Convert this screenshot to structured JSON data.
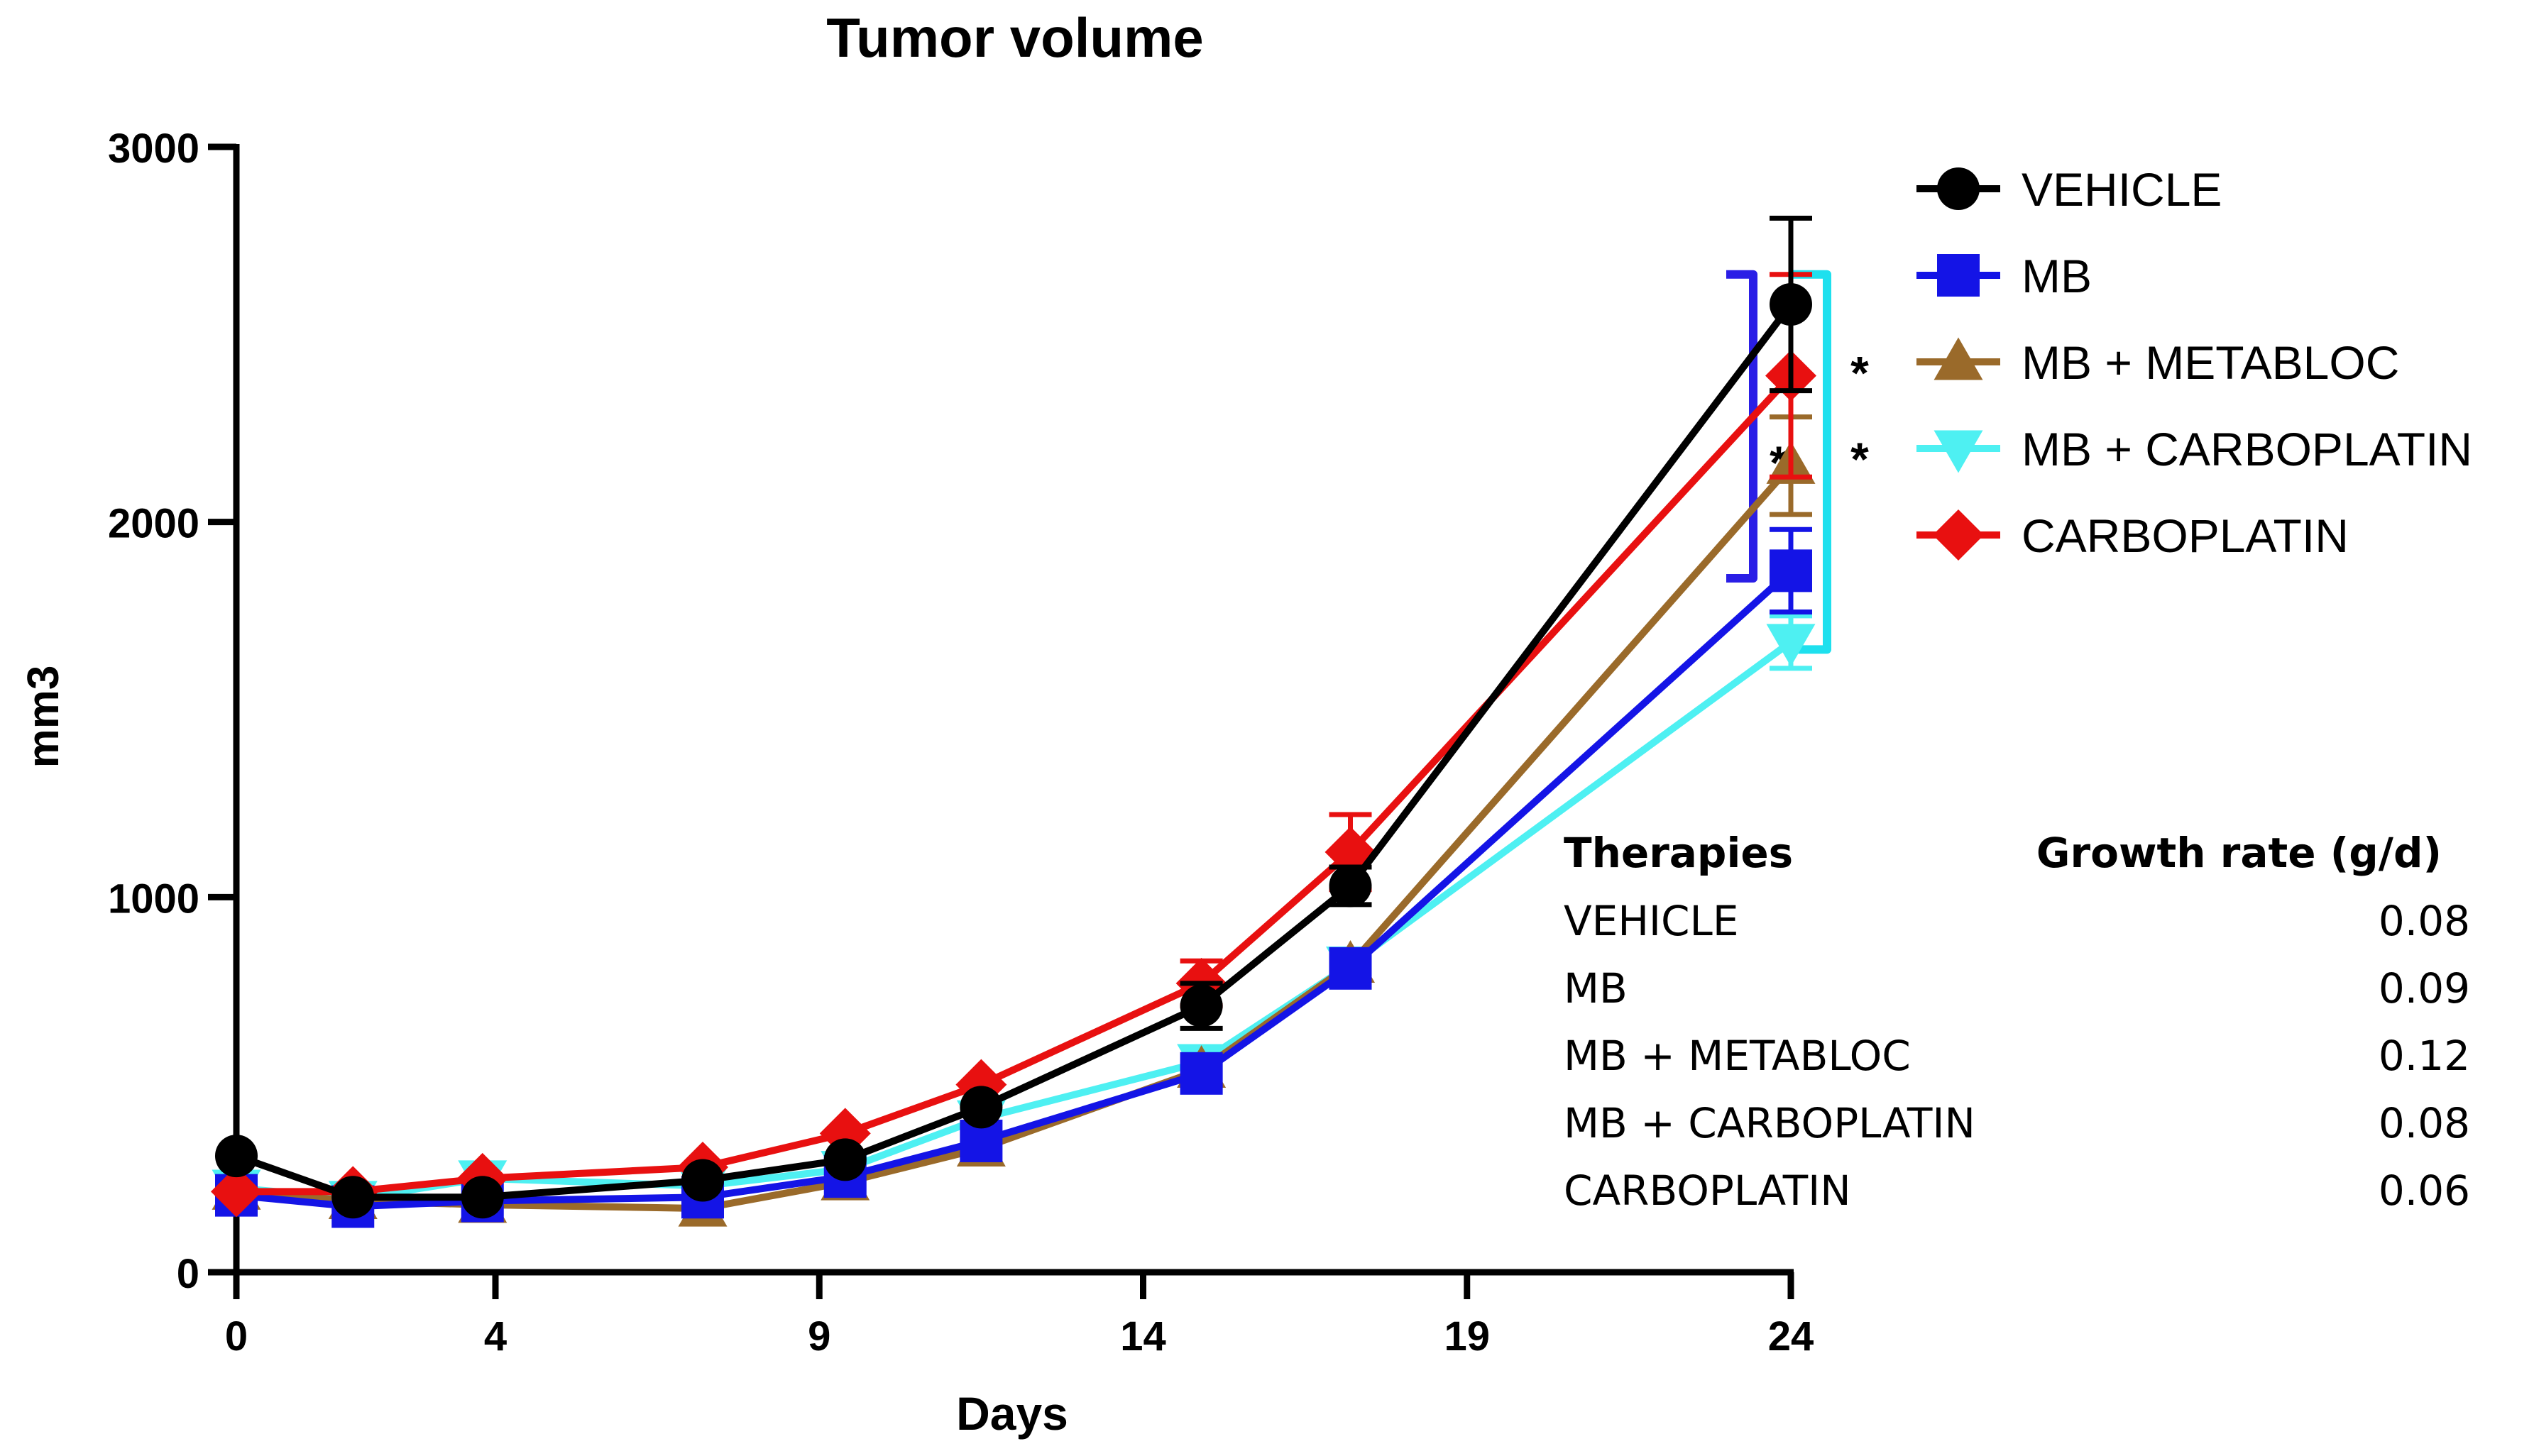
{
  "chart_data": {
    "type": "line",
    "title": "Tumor volume",
    "xlabel": "Days",
    "ylabel": "mm3",
    "xlim": [
      0,
      24
    ],
    "ylim": [
      0,
      3000
    ],
    "xticks": [
      "0",
      "4",
      "9",
      "14",
      "19",
      "24"
    ],
    "xtick_values": [
      0,
      4,
      9,
      14,
      19,
      24
    ],
    "yticks": [
      "0",
      "1000",
      "2000",
      "3000"
    ],
    "ytick_values": [
      0,
      1000,
      2000,
      3000
    ],
    "x": [
      0,
      1.8,
      3.8,
      7.2,
      9.4,
      11.5,
      14.9,
      17.2,
      24
    ],
    "legend_position": "top-right",
    "series": [
      {
        "name": "VEHICLE",
        "color": "#000000",
        "marker": "circle",
        "values": [
          310,
          200,
          200,
          245,
          300,
          440,
          710,
          1030,
          2580
        ],
        "errors": [
          0,
          0,
          0,
          0,
          0,
          0,
          60,
          50,
          230
        ]
      },
      {
        "name": "MB",
        "color": "#1414e6",
        "marker": "square",
        "values": [
          205,
          175,
          190,
          200,
          255,
          350,
          530,
          810,
          1870
        ],
        "errors": [
          0,
          0,
          0,
          0,
          0,
          0,
          0,
          0,
          110
        ]
      },
      {
        "name": "MB + METABLOC",
        "color": "#9a6a2a",
        "marker": "triangle-up",
        "values": [
          215,
          190,
          180,
          170,
          240,
          330,
          540,
          820,
          2150
        ],
        "errors": [
          0,
          0,
          0,
          0,
          0,
          0,
          0,
          0,
          130
        ]
      },
      {
        "name": "MB + CARBOPLATIN",
        "color": "#4ef0f2",
        "marker": "triangle-down",
        "values": [
          225,
          195,
          250,
          230,
          275,
          410,
          560,
          820,
          1680
        ],
        "errors": [
          0,
          0,
          0,
          0,
          0,
          0,
          0,
          0,
          70
        ]
      },
      {
        "name": "CARBOPLATIN",
        "color": "#e81010",
        "marker": "diamond",
        "values": [
          215,
          215,
          250,
          280,
          370,
          500,
          770,
          1120,
          2390
        ],
        "errors": [
          0,
          0,
          0,
          0,
          0,
          0,
          60,
          100,
          270
        ]
      }
    ],
    "annotations": [
      {
        "label": "*",
        "color": "#2a1ee6",
        "from": 1850,
        "to": 2660
      },
      {
        "label": "*",
        "color": "#1ee0ee",
        "from": 1660,
        "to": 2660
      },
      {
        "label": "*",
        "color": "#000000"
      }
    ]
  },
  "table": {
    "headers": [
      "Therapies",
      "Growth rate (g/d)"
    ],
    "rows": [
      [
        "VEHICLE",
        "0.08"
      ],
      [
        "MB",
        "0.09"
      ],
      [
        "MB + METABLOC",
        "0.12"
      ],
      [
        "MB + CARBOPLATIN",
        "0.08"
      ],
      [
        "CARBOPLATIN",
        "0.06"
      ]
    ]
  }
}
